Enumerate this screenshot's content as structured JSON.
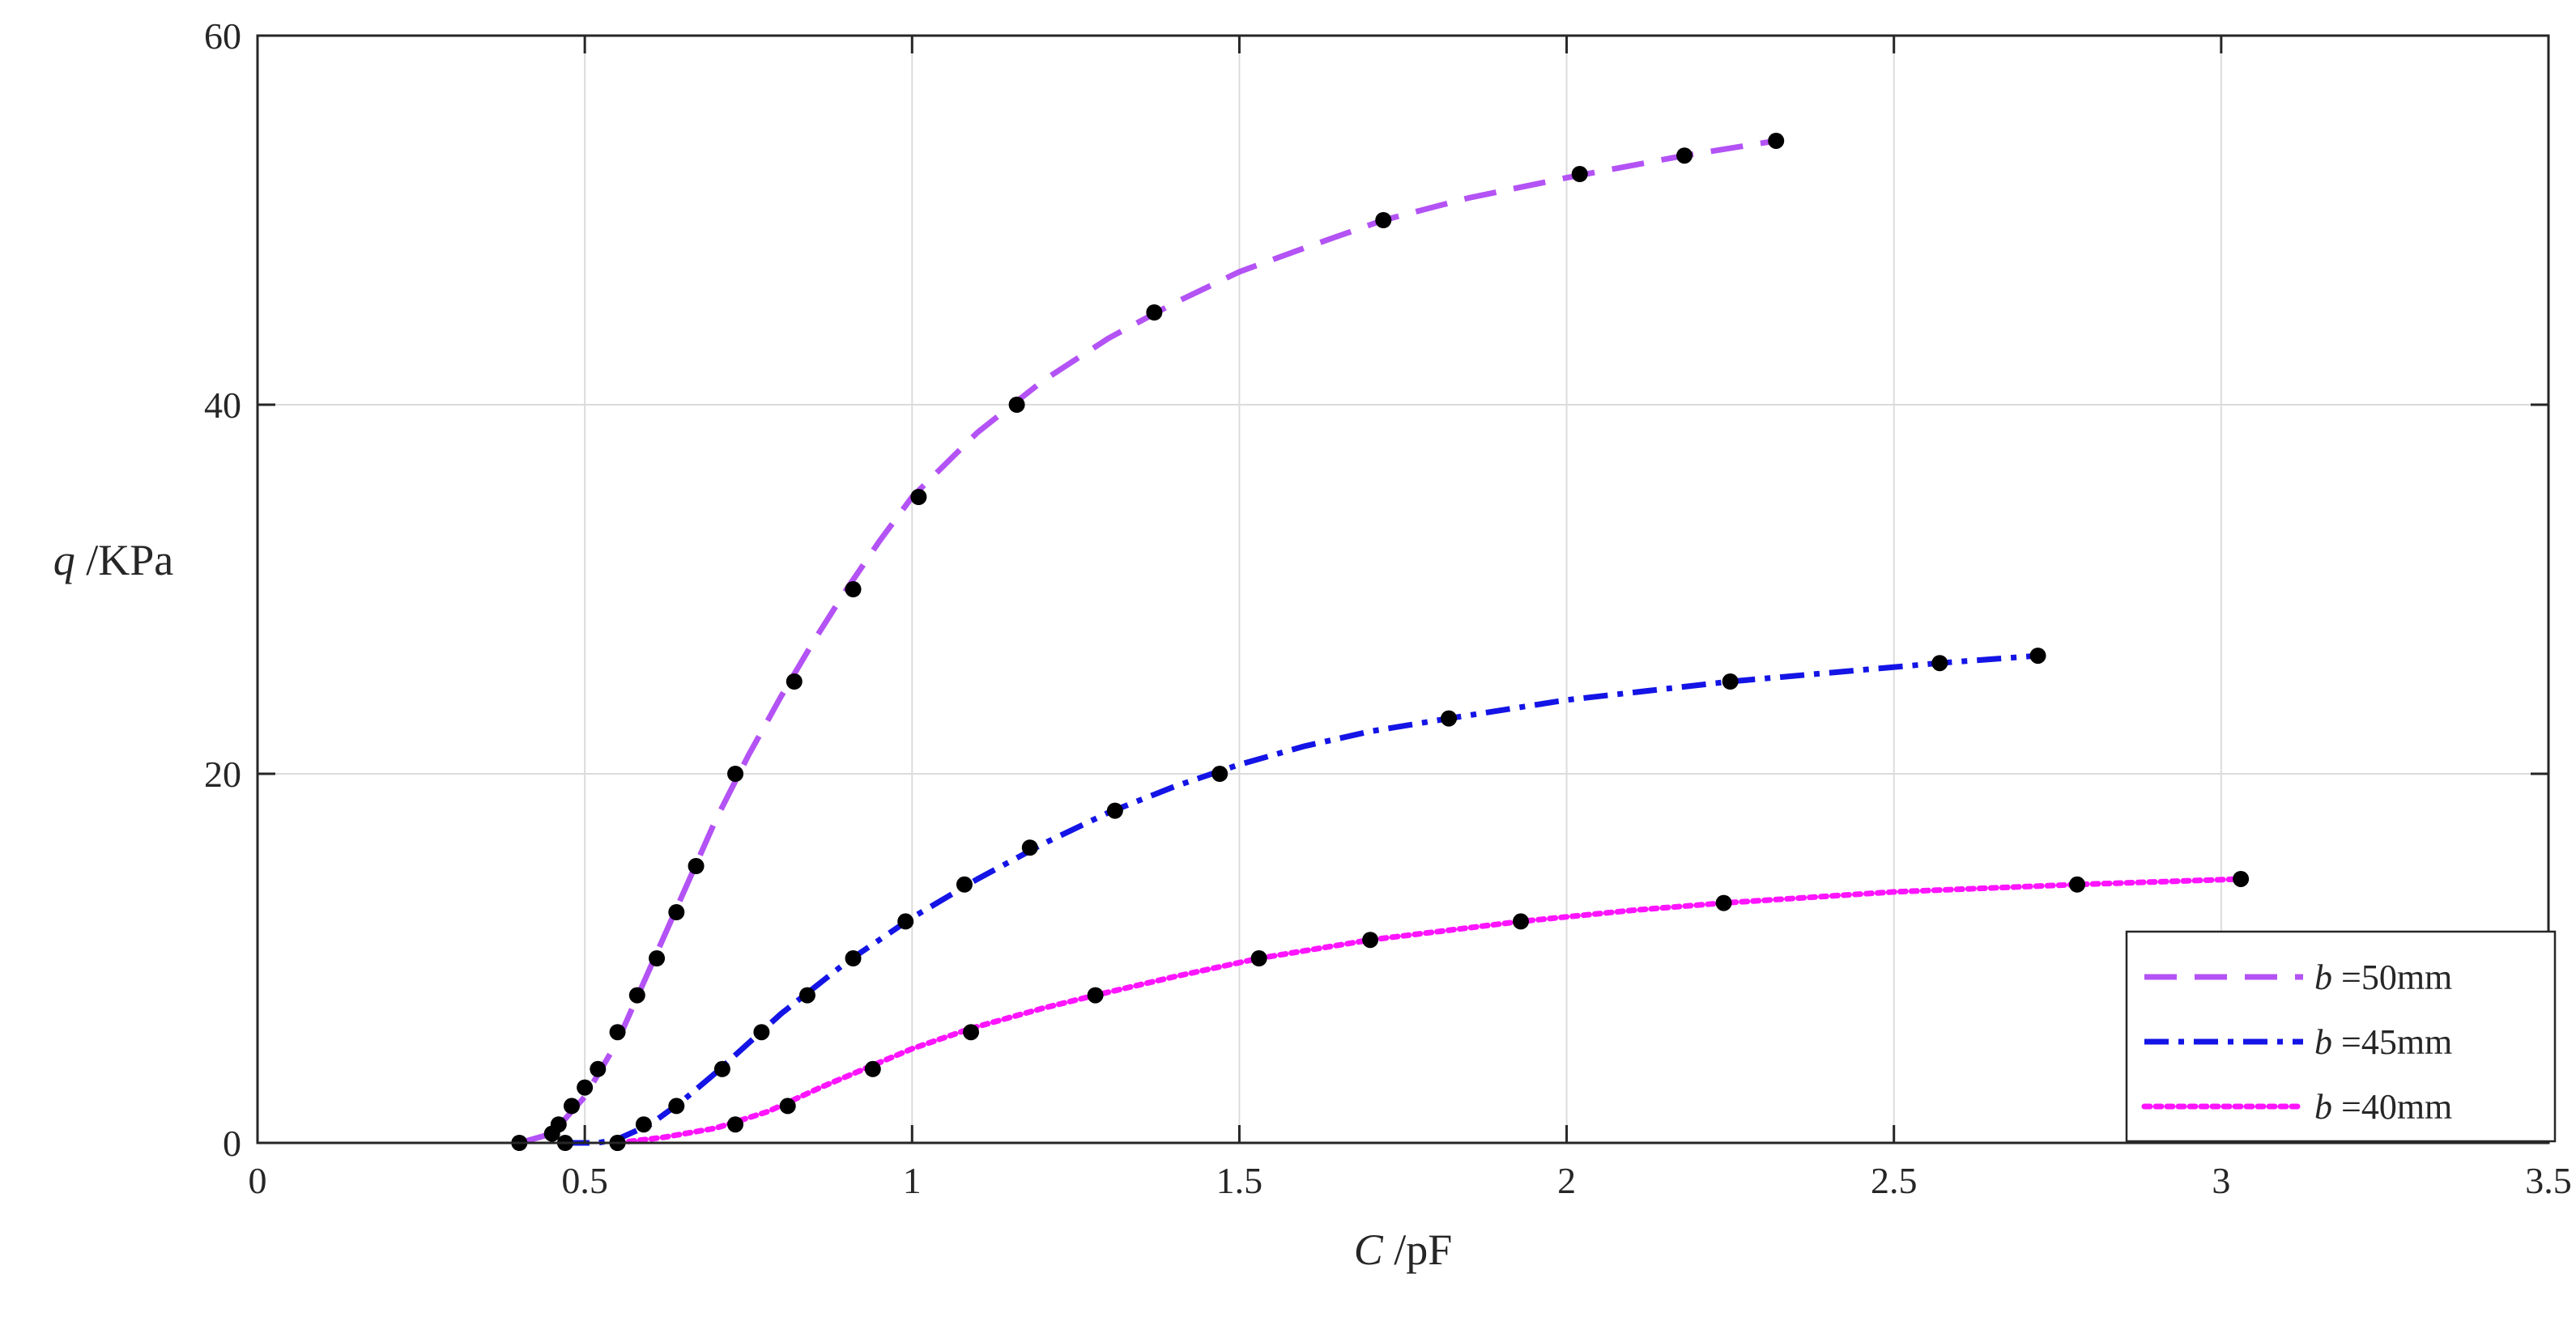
{
  "chart_data": {
    "type": "line",
    "title": "",
    "xlabel": {
      "var": "C",
      "unit": " /pF"
    },
    "ylabel": {
      "var": "q",
      "unit": " /KPa"
    },
    "xlim": [
      0,
      3.5
    ],
    "ylim": [
      0,
      60
    ],
    "x_ticks": [
      "0",
      "0.5",
      "1",
      "1.5",
      "2",
      "2.5",
      "3",
      "3.5"
    ],
    "y_ticks": [
      "0",
      "20",
      "40",
      "60"
    ],
    "grid": true,
    "legend_position": "bottom-right",
    "series": [
      {
        "name": "b =50mm",
        "legend_var": "b",
        "legend_text": " =50mm",
        "color": "#b352f5",
        "style": "dashed",
        "points": [
          [
            0.4,
            0
          ],
          [
            0.45,
            0.5
          ],
          [
            0.46,
            1
          ],
          [
            0.48,
            2
          ],
          [
            0.5,
            3
          ],
          [
            0.52,
            4
          ],
          [
            0.55,
            6
          ],
          [
            0.58,
            8
          ],
          [
            0.61,
            10
          ],
          [
            0.64,
            12.5
          ],
          [
            0.67,
            15
          ],
          [
            0.73,
            20
          ],
          [
            0.82,
            25
          ],
          [
            0.91,
            30
          ],
          [
            1.01,
            35
          ],
          [
            1.16,
            40
          ],
          [
            1.37,
            45
          ],
          [
            1.72,
            50
          ],
          [
            2.02,
            52.5
          ],
          [
            2.18,
            53.5
          ],
          [
            2.32,
            54.3
          ]
        ],
        "curve": [
          [
            0.4,
            0
          ],
          [
            0.45,
            0.5
          ],
          [
            0.5,
            2.5
          ],
          [
            0.55,
            5.5
          ],
          [
            0.6,
            9.5
          ],
          [
            0.65,
            13.5
          ],
          [
            0.7,
            17.5
          ],
          [
            0.75,
            21
          ],
          [
            0.8,
            24.2
          ],
          [
            0.85,
            27.2
          ],
          [
            0.9,
            30
          ],
          [
            0.95,
            32.6
          ],
          [
            1.0,
            35
          ],
          [
            1.1,
            38.5
          ],
          [
            1.2,
            41.3
          ],
          [
            1.3,
            43.6
          ],
          [
            1.4,
            45.5
          ],
          [
            1.5,
            47.2
          ],
          [
            1.6,
            48.5
          ],
          [
            1.72,
            50
          ],
          [
            1.85,
            51.2
          ],
          [
            2.0,
            52.3
          ],
          [
            2.18,
            53.5
          ],
          [
            2.32,
            54.3
          ]
        ]
      },
      {
        "name": "b =45mm",
        "legend_var": "b",
        "legend_text": " =45mm",
        "color": "#1414e6",
        "style": "dashdot",
        "points": [
          [
            0.47,
            0
          ],
          [
            0.55,
            0
          ],
          [
            0.59,
            1
          ],
          [
            0.64,
            2
          ],
          [
            0.71,
            4
          ],
          [
            0.77,
            6
          ],
          [
            0.84,
            8
          ],
          [
            0.91,
            10
          ],
          [
            0.99,
            12
          ],
          [
            1.08,
            14
          ],
          [
            1.18,
            16
          ],
          [
            1.31,
            18
          ],
          [
            1.47,
            20
          ],
          [
            1.82,
            23
          ],
          [
            2.25,
            25
          ],
          [
            2.57,
            26
          ],
          [
            2.72,
            26.4
          ]
        ],
        "curve": [
          [
            0.47,
            0
          ],
          [
            0.52,
            0
          ],
          [
            0.55,
            0.2
          ],
          [
            0.6,
            1
          ],
          [
            0.65,
            2.3
          ],
          [
            0.7,
            3.8
          ],
          [
            0.75,
            5.4
          ],
          [
            0.8,
            7
          ],
          [
            0.85,
            8.4
          ],
          [
            0.9,
            9.8
          ],
          [
            1.0,
            12.2
          ],
          [
            1.1,
            14.3
          ],
          [
            1.2,
            16.2
          ],
          [
            1.3,
            17.9
          ],
          [
            1.4,
            19.3
          ],
          [
            1.5,
            20.5
          ],
          [
            1.6,
            21.5
          ],
          [
            1.7,
            22.3
          ],
          [
            1.82,
            23
          ],
          [
            2.0,
            24
          ],
          [
            2.25,
            25
          ],
          [
            2.57,
            26
          ],
          [
            2.72,
            26.4
          ]
        ]
      },
      {
        "name": "b =40mm",
        "legend_var": "b",
        "legend_text": " =40mm",
        "color": "#ff14ff",
        "style": "dotted",
        "points": [
          [
            0.55,
            0
          ],
          [
            0.73,
            1
          ],
          [
            0.81,
            2
          ],
          [
            0.94,
            4
          ],
          [
            1.09,
            6
          ],
          [
            1.28,
            8
          ],
          [
            1.53,
            10
          ],
          [
            1.7,
            11
          ],
          [
            1.93,
            12
          ],
          [
            2.24,
            13
          ],
          [
            2.78,
            14
          ],
          [
            3.03,
            14.3
          ]
        ],
        "curve": [
          [
            0.55,
            0
          ],
          [
            0.62,
            0.3
          ],
          [
            0.7,
            0.8
          ],
          [
            0.78,
            1.7
          ],
          [
            0.86,
            3
          ],
          [
            0.94,
            4.2
          ],
          [
            1.0,
            5.1
          ],
          [
            1.09,
            6.2
          ],
          [
            1.2,
            7.3
          ],
          [
            1.28,
            8
          ],
          [
            1.4,
            9
          ],
          [
            1.53,
            10
          ],
          [
            1.7,
            11
          ],
          [
            1.93,
            12
          ],
          [
            2.1,
            12.6
          ],
          [
            2.24,
            13
          ],
          [
            2.5,
            13.6
          ],
          [
            2.78,
            14
          ],
          [
            3.03,
            14.3
          ]
        ]
      }
    ]
  }
}
